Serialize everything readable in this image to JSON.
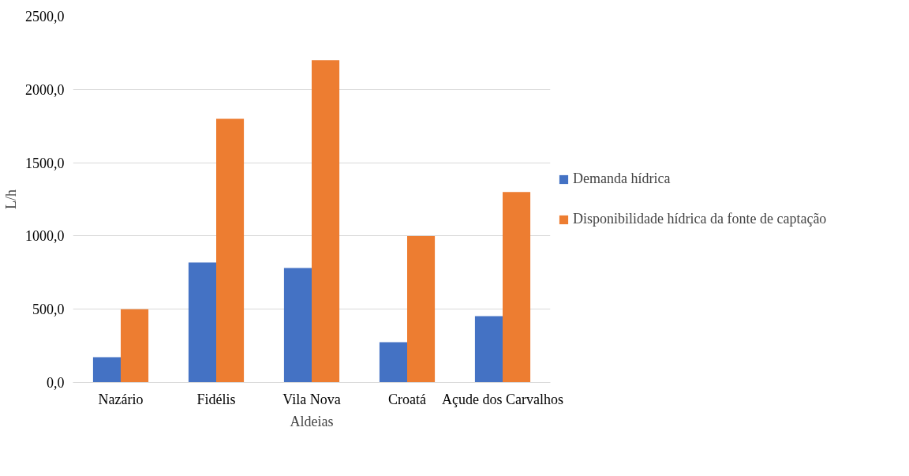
{
  "chart_data": {
    "type": "bar",
    "xlabel": "Aldeias",
    "ylabel": "L/h",
    "categories": [
      "Nazário",
      "Fidélis",
      "Vila Nova",
      "Croatá",
      "Açude dos Carvalhos"
    ],
    "series": [
      {
        "name": "Demanda hídrica",
        "color": "#4472c4",
        "values": [
          172,
          819,
          781,
          275,
          453
        ]
      },
      {
        "name": "Disponibilidade hídrica da fonte de captação",
        "color": "#ed7d31",
        "values": [
          500,
          1800,
          2200,
          1000,
          1300
        ]
      }
    ],
    "ylim": [
      0,
      2500
    ],
    "yticks": [
      {
        "value": 0,
        "label": "0,0"
      },
      {
        "value": 500,
        "label": "500,0"
      },
      {
        "value": 1000,
        "label": "1000,0"
      },
      {
        "value": 1500,
        "label": "1500,0"
      },
      {
        "value": 2000,
        "label": "2000,0"
      },
      {
        "value": 2500,
        "label": "2500,0"
      }
    ],
    "grid": "y",
    "legend": "right"
  }
}
